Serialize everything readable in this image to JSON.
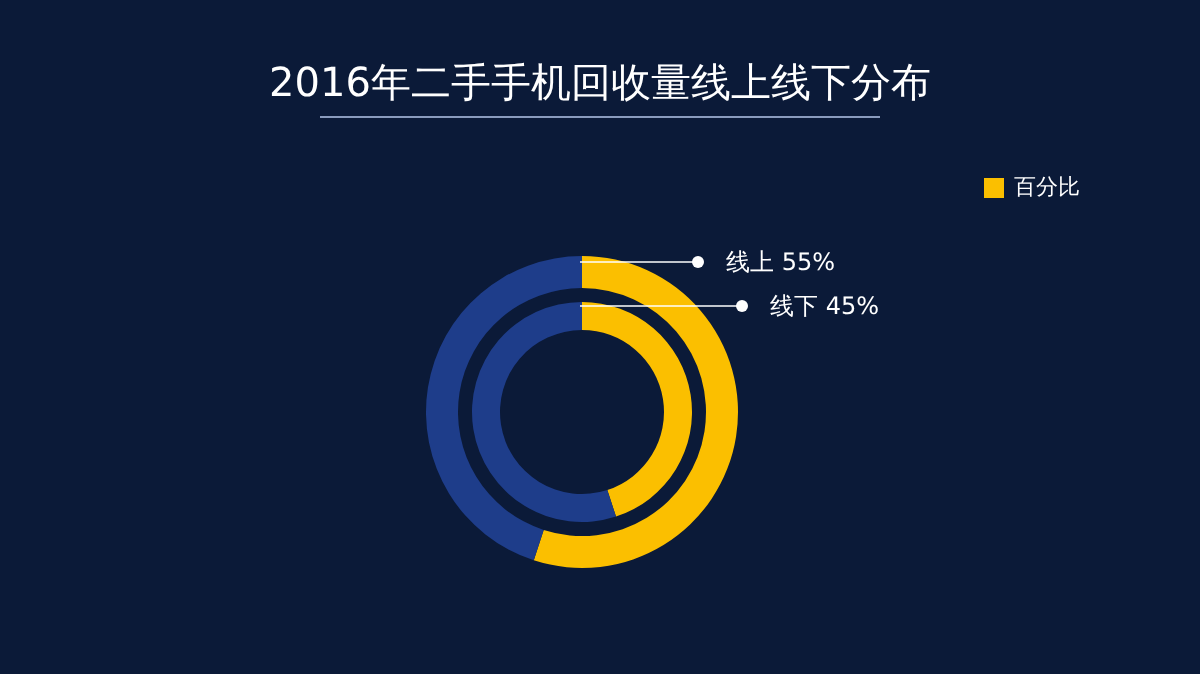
{
  "chart_data": [
    {
      "type": "donut",
      "title": "2016年二手手机回收量线上线下分布",
      "legend_title": "百分比",
      "categories": [
        "线上",
        null
      ],
      "values": [
        55,
        45
      ],
      "colors": [
        "#fbbf00",
        "#1e3d8a"
      ],
      "value_labels": [
        "55%",
        null
      ]
    },
    {
      "type": "donut",
      "categories": [
        "线下",
        null
      ],
      "values": [
        45,
        55
      ],
      "colors": [
        "#fbbf00",
        "#1e3d8a"
      ],
      "value_labels": [
        "45%",
        null
      ]
    }
  ]
}
